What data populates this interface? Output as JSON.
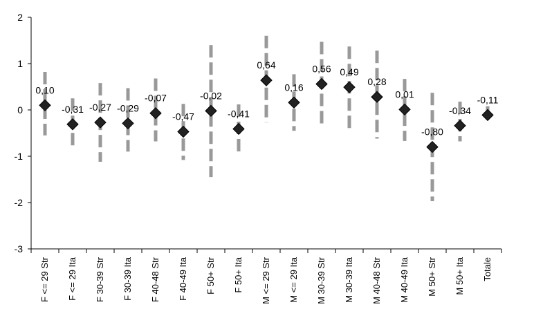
{
  "chart_data": {
    "type": "scatter",
    "title": "",
    "xlabel": "",
    "ylabel": "",
    "ylim": [
      -3,
      2
    ],
    "yticks": [
      "2",
      "1",
      "0",
      "-1",
      "-2",
      "-3"
    ],
    "grid": false,
    "legend": "none",
    "colors": {
      "marker": "#222222",
      "error_bar": "#999999",
      "axis": "#000000"
    },
    "categories": [
      "F <= 29 Str",
      "F <= 29 Ita",
      "F 30-39 Str",
      "F 30-39 Ita",
      "F 40-48 Str",
      "F 40-49 Ita",
      "F 50+ Str",
      "F 50+ Ita",
      "M <= 29 Str",
      "M <= 29 Ita",
      "M 30-39 Str",
      "M 30-39 Ita",
      "M 40-48 Str",
      "M 40-49 Ita",
      "M 50+ Str",
      "M 50+ Ita",
      "Totale"
    ],
    "values": [
      0.1,
      -0.31,
      -0.27,
      -0.29,
      -0.07,
      -0.47,
      -0.02,
      -0.41,
      0.64,
      0.16,
      0.56,
      0.49,
      0.28,
      0.01,
      -0.8,
      -0.34,
      -0.11
    ],
    "value_labels": [
      "0,10",
      "-0,31",
      "-0,27",
      "-0,29",
      "-0,07",
      "-0,47",
      "-0,02",
      "-0,41",
      "0,64",
      "0,16",
      "0,56",
      "0,49",
      "0,28",
      "0,01",
      "-0,80",
      "-0,34",
      "-0,11"
    ],
    "error_low": [
      -0.55,
      -0.85,
      -1.12,
      -0.9,
      -0.68,
      -1.08,
      -1.45,
      -0.95,
      -0.27,
      -0.45,
      -0.33,
      -0.42,
      -0.62,
      -0.67,
      -1.97,
      -0.68,
      -0.22
    ],
    "error_high": [
      0.82,
      0.25,
      0.58,
      0.47,
      0.68,
      0.13,
      1.4,
      0.12,
      1.6,
      0.77,
      1.47,
      1.37,
      1.28,
      0.67,
      0.37,
      0.18,
      0.08
    ]
  }
}
